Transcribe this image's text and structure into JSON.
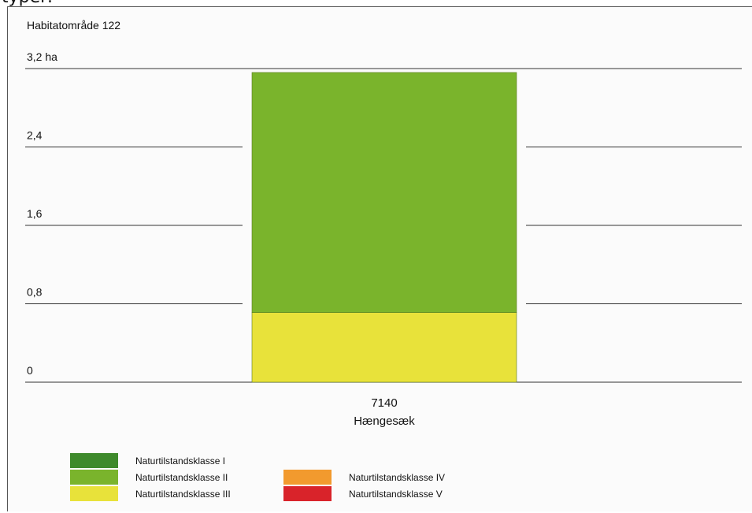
{
  "caption_fragment": "typer:",
  "chart_data": {
    "type": "bar",
    "title": "Habitatområde 122",
    "unit_label": "3,2 ha",
    "y_tick_labels": [
      "3,2 ha",
      "2,4",
      "1,6",
      "0,8",
      "0"
    ],
    "y_ticks": [
      3.2,
      2.4,
      1.6,
      0.8,
      0
    ],
    "ylim": [
      0,
      3.2
    ],
    "categories": [
      {
        "code": "7140",
        "name": "Hængesæk"
      }
    ],
    "series": [
      {
        "name": "Naturtilstandsklasse III",
        "color": "#e8e23a",
        "values": [
          0.71
        ]
      },
      {
        "name": "Naturtilstandsklasse II",
        "color": "#7ab42c",
        "values": [
          2.45
        ]
      }
    ],
    "legend": [
      {
        "label": "Naturtilstandsklasse I",
        "color": "#3e8a2b"
      },
      {
        "label": "Naturtilstandsklasse II",
        "color": "#7ab42c"
      },
      {
        "label": "Naturtilstandsklasse III",
        "color": "#e8e23a"
      },
      {
        "label": "Naturtilstandsklasse IV",
        "color": "#f29a2e"
      },
      {
        "label": "Naturtilstandsklasse V",
        "color": "#d9232a"
      }
    ],
    "legend_position": "bottom-left",
    "grid": true
  }
}
